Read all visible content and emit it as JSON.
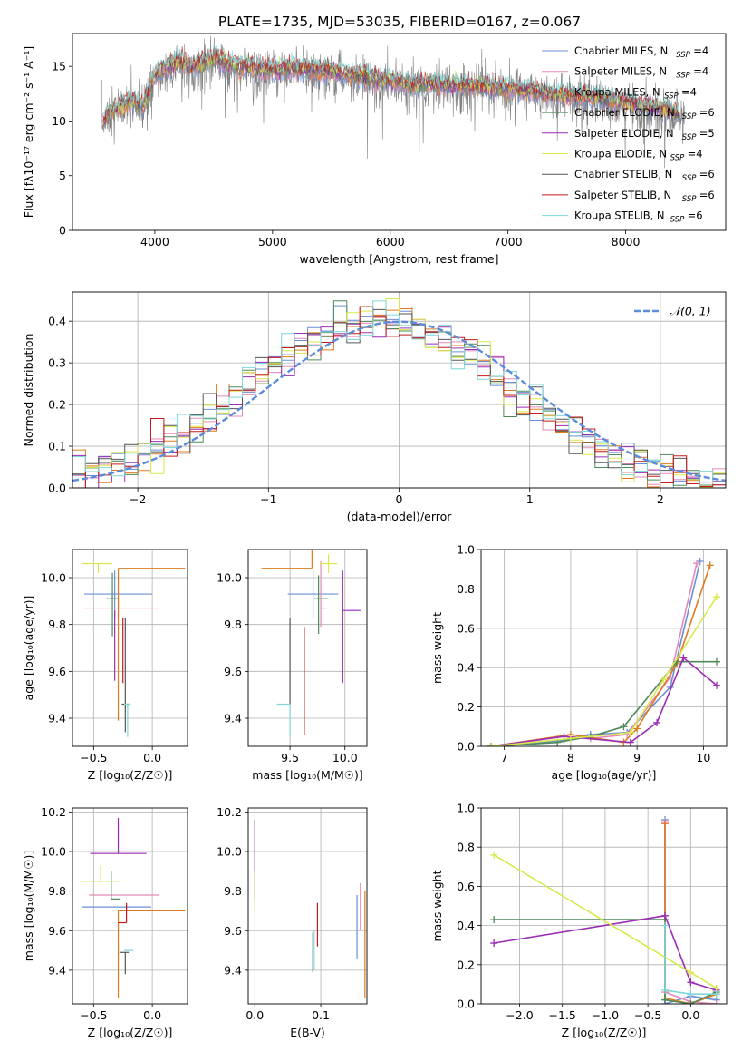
{
  "figure": {
    "title": "PLATE=1735, MJD=53035, FIBERID=0167, z=0.067"
  },
  "models": [
    {
      "name": "Chabrier MILES",
      "nssp": "4",
      "color": "#6b8fd6"
    },
    {
      "name": "Salpeter MILES",
      "nssp": "4",
      "color": "#e58ab8"
    },
    {
      "name": "Kroupa MILES",
      "nssp": "4",
      "color": "#e07a1f"
    },
    {
      "name": "Chabrier ELODIE",
      "nssp": "6",
      "color": "#4f8a5a"
    },
    {
      "name": "Salpeter ELODIE",
      "nssp": "5",
      "color": "#9b2db5"
    },
    {
      "name": "Kroupa ELODIE",
      "nssp": "4",
      "color": "#d9e84a"
    },
    {
      "name": "Chabrier STELIB",
      "nssp": "6",
      "color": "#555555"
    },
    {
      "name": "Salpeter STELIB",
      "nssp": "6",
      "color": "#c41a1a"
    },
    {
      "name": "Kroupa STELIB",
      "nssp": "6",
      "color": "#7fd6d6"
    }
  ],
  "chart_data": [
    {
      "id": "spectrum",
      "type": "line",
      "xlabel": "wavelength [Angstrom, rest frame]",
      "ylabel": "Flux [fλ10⁻¹⁷ erg cm⁻² s⁻¹ A⁻¹]",
      "xlim": [
        3300,
        8850
      ],
      "ylim": [
        0,
        18
      ],
      "xticks": [
        4000,
        5000,
        6000,
        7000,
        8000
      ],
      "yticks": [
        0,
        5,
        10,
        15
      ],
      "grid": false,
      "legend": "top-right",
      "data_color": "#808080",
      "continuum": {
        "x": [
          3550,
          3600,
          3700,
          3800,
          3900,
          4000,
          4100,
          4200,
          4300,
          4500,
          4700,
          5000,
          5300,
          5600,
          5900,
          6200,
          6500,
          6800,
          7100,
          7400,
          7700,
          8000,
          8300,
          8500
        ],
        "y": [
          9.5,
          10.5,
          11.0,
          11.5,
          11.0,
          13.8,
          14.5,
          15.0,
          14.5,
          15.3,
          14.6,
          14.3,
          14.4,
          14.0,
          13.4,
          13.0,
          13.0,
          12.8,
          12.5,
          12.1,
          11.8,
          11.4,
          10.9,
          10.2
        ]
      }
    },
    {
      "id": "residuals",
      "type": "histogram",
      "xlabel": "(data-model)/error",
      "ylabel": "Normed distribution",
      "xlim": [
        -2.5,
        2.5
      ],
      "ylim": [
        0,
        0.47
      ],
      "xticks": [
        -2,
        -1,
        0,
        1,
        2
      ],
      "yticks": [
        0.0,
        0.1,
        0.2,
        0.3,
        0.4
      ],
      "grid": true,
      "legend": "top-right",
      "reference": {
        "label": "𝒩(0, 1)",
        "color": "#5b8bdb"
      },
      "bin_width": 0.1
    },
    {
      "id": "age-vs-Z",
      "type": "errorbar",
      "xlabel": "Z [log₁₀(Z/Z☉)]",
      "ylabel": "age  [log₁₀(age/yr)]",
      "xlim": [
        -0.68,
        0.3
      ],
      "ylim": [
        9.28,
        10.12
      ],
      "xticks": [
        -0.5,
        0.0
      ],
      "yticks": [
        9.4,
        9.6,
        9.8,
        10.0
      ],
      "grid": true,
      "points": [
        {
          "x": -0.32,
          "xerr": [
            0.26,
            0.32
          ],
          "y": 9.93,
          "yerr": [
            0.1,
            0.1
          ],
          "model": 0
        },
        {
          "x": -0.29,
          "xerr": [
            0.29,
            0.34
          ],
          "y": 9.87,
          "yerr": [
            0.04,
            0.04
          ],
          "model": 1
        },
        {
          "x": -0.29,
          "xerr": [
            0.0,
            0.57
          ],
          "y": 10.04,
          "yerr": [
            0.65,
            0.0
          ],
          "model": 2
        },
        {
          "x": -0.34,
          "xerr": [
            0.05,
            0.05
          ],
          "y": 9.91,
          "yerr": [
            0.16,
            0.11
          ],
          "model": 3
        },
        {
          "x": -0.32,
          "xerr": [
            0.0,
            0.0
          ],
          "y": 9.86,
          "yerr": [
            0.3,
            0.0
          ],
          "model": 4
        },
        {
          "x": -0.46,
          "xerr": [
            0.14,
            0.12
          ],
          "y": 10.06,
          "yerr": [
            0.04,
            0.0
          ],
          "model": 5
        },
        {
          "x": -0.23,
          "xerr": [
            0.03,
            0.04
          ],
          "y": 9.46,
          "yerr": [
            0.12,
            0.37
          ],
          "model": 6
        },
        {
          "x": -0.25,
          "xerr": [
            0.0,
            0.0
          ],
          "y": 9.83,
          "yerr": [
            0.28,
            0.0
          ],
          "model": 7
        },
        {
          "x": -0.21,
          "xerr": [
            0.03,
            0.02
          ],
          "y": 9.46,
          "yerr": [
            0.14,
            0.0
          ],
          "model": 8
        }
      ]
    },
    {
      "id": "age-vs-mass",
      "type": "errorbar",
      "xlabel": "mass [log₁₀(M/M☉)]",
      "ylabel": "",
      "xlim": [
        9.12,
        10.2
      ],
      "ylim": [
        9.28,
        10.12
      ],
      "xticks": [
        9.5,
        10.0
      ],
      "yticks": [
        9.4,
        9.6,
        9.8,
        10.0
      ],
      "grid": true,
      "points": [
        {
          "x": 9.71,
          "xerr": [
            0.23,
            0.23
          ],
          "y": 9.93,
          "yerr": [
            0.1,
            0.1
          ],
          "model": 0
        },
        {
          "x": 9.78,
          "xerr": [
            0.0,
            0.06
          ],
          "y": 9.87,
          "yerr": [
            0.08,
            0.2
          ],
          "model": 1
        },
        {
          "x": 9.7,
          "xerr": [
            0.46,
            0.0
          ],
          "y": 10.04,
          "yerr": [
            0.0,
            0.65
          ],
          "model": 2
        },
        {
          "x": 9.76,
          "xerr": [
            0.04,
            0.09
          ],
          "y": 9.91,
          "yerr": [
            0.15,
            0.1
          ],
          "model": 3
        },
        {
          "x": 9.98,
          "xerr": [
            0.0,
            0.17
          ],
          "y": 9.86,
          "yerr": [
            0.31,
            0.17
          ],
          "model": 4
        },
        {
          "x": 9.85,
          "xerr": [
            0.08,
            0.08
          ],
          "y": 10.06,
          "yerr": [
            0.04,
            0.04
          ],
          "model": 5
        },
        {
          "x": 9.5,
          "xerr": [
            0.0,
            0.0
          ],
          "y": 9.46,
          "yerr": [
            0.0,
            0.37
          ],
          "model": 6
        },
        {
          "x": 9.63,
          "xerr": [
            0.0,
            0.0
          ],
          "y": 9.46,
          "yerr": [
            0.13,
            0.33
          ],
          "model": 7
        },
        {
          "x": 9.5,
          "xerr": [
            0.12,
            0.0
          ],
          "y": 9.46,
          "yerr": [
            0.14,
            0.0
          ],
          "model": 8
        }
      ]
    },
    {
      "id": "weight-vs-age",
      "type": "line",
      "xlabel": "age  [log₁₀(age/yr)]",
      "ylabel": "mass weight",
      "xlim": [
        6.65,
        10.35
      ],
      "ylim": [
        0,
        1
      ],
      "xticks": [
        7,
        8,
        9,
        10
      ],
      "yticks": [
        0.0,
        0.2,
        0.4,
        0.6,
        0.8,
        1.0
      ],
      "grid": true,
      "series": [
        {
          "model": 0,
          "x": [
            6.8,
            7.9,
            8.3,
            8.85,
            9.5,
            9.95
          ],
          "y": [
            0.0,
            0.03,
            0.06,
            0.07,
            0.3,
            0.94
          ]
        },
        {
          "model": 1,
          "x": [
            6.8,
            7.9,
            8.3,
            8.85,
            9.5,
            9.9
          ],
          "y": [
            0.0,
            0.05,
            0.04,
            0.06,
            0.35,
            0.93
          ]
        },
        {
          "model": 2,
          "x": [
            6.8,
            8.0,
            8.8,
            9.0,
            9.6,
            10.1
          ],
          "y": [
            0.0,
            0.06,
            0.02,
            0.09,
            0.42,
            0.92
          ]
        },
        {
          "model": 3,
          "x": [
            6.8,
            7.8,
            8.3,
            8.8,
            9.6,
            10.2
          ],
          "y": [
            0.0,
            0.02,
            0.05,
            0.1,
            0.43,
            0.43
          ]
        },
        {
          "model": 4,
          "x": [
            6.8,
            7.9,
            8.9,
            9.3,
            9.7,
            10.2
          ],
          "y": [
            0.0,
            0.05,
            0.02,
            0.12,
            0.45,
            0.31
          ]
        },
        {
          "model": 5,
          "x": [
            6.8,
            8.0,
            8.9,
            9.4,
            10.2
          ],
          "y": [
            0.0,
            0.04,
            0.07,
            0.34,
            0.76
          ]
        }
      ]
    },
    {
      "id": "mass-vs-Z",
      "type": "errorbar",
      "xlabel": "Z [log₁₀(Z/Z☉)]",
      "ylabel": "mass [log₁₀(M/M☉)]",
      "xlim": [
        -0.68,
        0.3
      ],
      "ylim": [
        9.23,
        10.22
      ],
      "xticks": [
        -0.5,
        0.0
      ],
      "yticks": [
        9.4,
        9.6,
        9.8,
        10.0,
        10.2
      ],
      "grid": true,
      "points": [
        {
          "x": -0.34,
          "xerr": [
            0.26,
            0.33
          ],
          "y": 9.72,
          "yerr": [
            0.0,
            0.0
          ],
          "model": 0
        },
        {
          "x": -0.27,
          "xerr": [
            0.27,
            0.33
          ],
          "y": 9.78,
          "yerr": [
            0.0,
            0.0
          ],
          "model": 1
        },
        {
          "x": -0.29,
          "xerr": [
            0.0,
            0.57
          ],
          "y": 9.7,
          "yerr": [
            0.44,
            0.0
          ],
          "model": 2
        },
        {
          "x": -0.35,
          "xerr": [
            0.0,
            0.08
          ],
          "y": 9.76,
          "yerr": [
            0.0,
            0.14
          ],
          "model": 3
        },
        {
          "x": -0.29,
          "xerr": [
            0.24,
            0.24
          ],
          "y": 9.99,
          "yerr": [
            0.0,
            0.18
          ],
          "model": 4
        },
        {
          "x": -0.44,
          "xerr": [
            0.18,
            0.17
          ],
          "y": 9.85,
          "yerr": [
            0.0,
            0.08
          ],
          "model": 5
        },
        {
          "x": -0.23,
          "xerr": [
            0.05,
            0.03
          ],
          "y": 9.49,
          "yerr": [
            0.11,
            0.0
          ],
          "model": 6
        },
        {
          "x": -0.22,
          "xerr": [
            0.07,
            0.0
          ],
          "y": 9.64,
          "yerr": [
            0.0,
            0.1
          ],
          "model": 7
        },
        {
          "x": -0.2,
          "xerr": [
            0.04,
            0.04
          ],
          "y": 9.5,
          "yerr": [
            0.0,
            0.0
          ],
          "model": 8
        }
      ]
    },
    {
      "id": "mass-vs-ebv",
      "type": "errorbar",
      "xlabel": "E(B-V)",
      "ylabel": "",
      "xlim": [
        -0.01,
        0.17
      ],
      "ylim": [
        9.23,
        10.22
      ],
      "xticks": [
        0.0,
        0.1
      ],
      "yticks": [
        9.4,
        9.6,
        9.8,
        10.0,
        10.2
      ],
      "grid": true,
      "points": [
        {
          "x": 0.0,
          "xerr": [
            0.0,
            0.0
          ],
          "y": 9.96,
          "yerr": [
            0.2,
            0.2
          ],
          "model": 4
        },
        {
          "x": 0.0,
          "xerr": [
            0.0,
            0.0
          ],
          "y": 9.8,
          "yerr": [
            0.1,
            0.1
          ],
          "model": 5
        },
        {
          "x": 0.09,
          "xerr": [
            0.0,
            0.0
          ],
          "y": 9.5,
          "yerr": [
            0.1,
            0.1
          ],
          "model": 8
        },
        {
          "x": 0.095,
          "xerr": [
            0.0,
            0.0
          ],
          "y": 9.63,
          "yerr": [
            0.11,
            0.11
          ],
          "model": 7
        },
        {
          "x": 0.088,
          "xerr": [
            0.0,
            0.0
          ],
          "y": 9.49,
          "yerr": [
            0.1,
            0.1
          ],
          "model": 6
        },
        {
          "x": 0.155,
          "xerr": [
            0.0,
            0.0
          ],
          "y": 9.62,
          "yerr": [
            0.16,
            0.16
          ],
          "model": 0
        },
        {
          "x": 0.16,
          "xerr": [
            0.0,
            0.0
          ],
          "y": 9.72,
          "yerr": [
            0.12,
            0.12
          ],
          "model": 1
        },
        {
          "x": 0.167,
          "xerr": [
            0.0,
            0.0
          ],
          "y": 9.53,
          "yerr": [
            0.27,
            0.27
          ],
          "model": 2
        }
      ]
    },
    {
      "id": "weight-vs-Z",
      "type": "line",
      "xlabel": "Z [log₁₀(Z/Z☉)]",
      "ylabel": "mass weight",
      "xlim": [
        -2.45,
        0.42
      ],
      "ylim": [
        0,
        1
      ],
      "xticks": [
        -2.0,
        -1.5,
        -1.0,
        -0.5,
        0.0
      ],
      "yticks": [
        0.0,
        0.2,
        0.4,
        0.6,
        0.8,
        1.0
      ],
      "grid": true,
      "series": [
        {
          "model": 0,
          "x": [
            -0.3,
            -0.3,
            0.0,
            0.3
          ],
          "y": [
            0.94,
            0.0,
            0.04,
            0.02
          ]
        },
        {
          "model": 1,
          "x": [
            -0.3,
            -0.3,
            0.0,
            0.3
          ],
          "y": [
            0.93,
            0.06,
            0.01,
            0.0
          ]
        },
        {
          "model": 2,
          "x": [
            -0.3,
            -0.3,
            0.0,
            0.3
          ],
          "y": [
            0.92,
            0.03,
            0.0,
            0.05
          ]
        },
        {
          "model": 3,
          "x": [
            -2.3,
            -0.3,
            -0.3,
            0.0,
            0.3
          ],
          "y": [
            0.43,
            0.43,
            0.02,
            0.0,
            0.06
          ]
        },
        {
          "model": 4,
          "x": [
            -2.3,
            -0.3,
            0.0,
            0.3
          ],
          "y": [
            0.31,
            0.45,
            0.11,
            0.07
          ]
        },
        {
          "model": 5,
          "x": [
            -2.3,
            0.0,
            0.3
          ],
          "y": [
            0.76,
            0.16,
            0.08
          ]
        },
        {
          "model": 8,
          "x": [
            -0.3,
            -0.3,
            0.0,
            0.3
          ],
          "y": [
            0.4,
            0.07,
            0.05,
            0.05
          ]
        }
      ]
    }
  ]
}
